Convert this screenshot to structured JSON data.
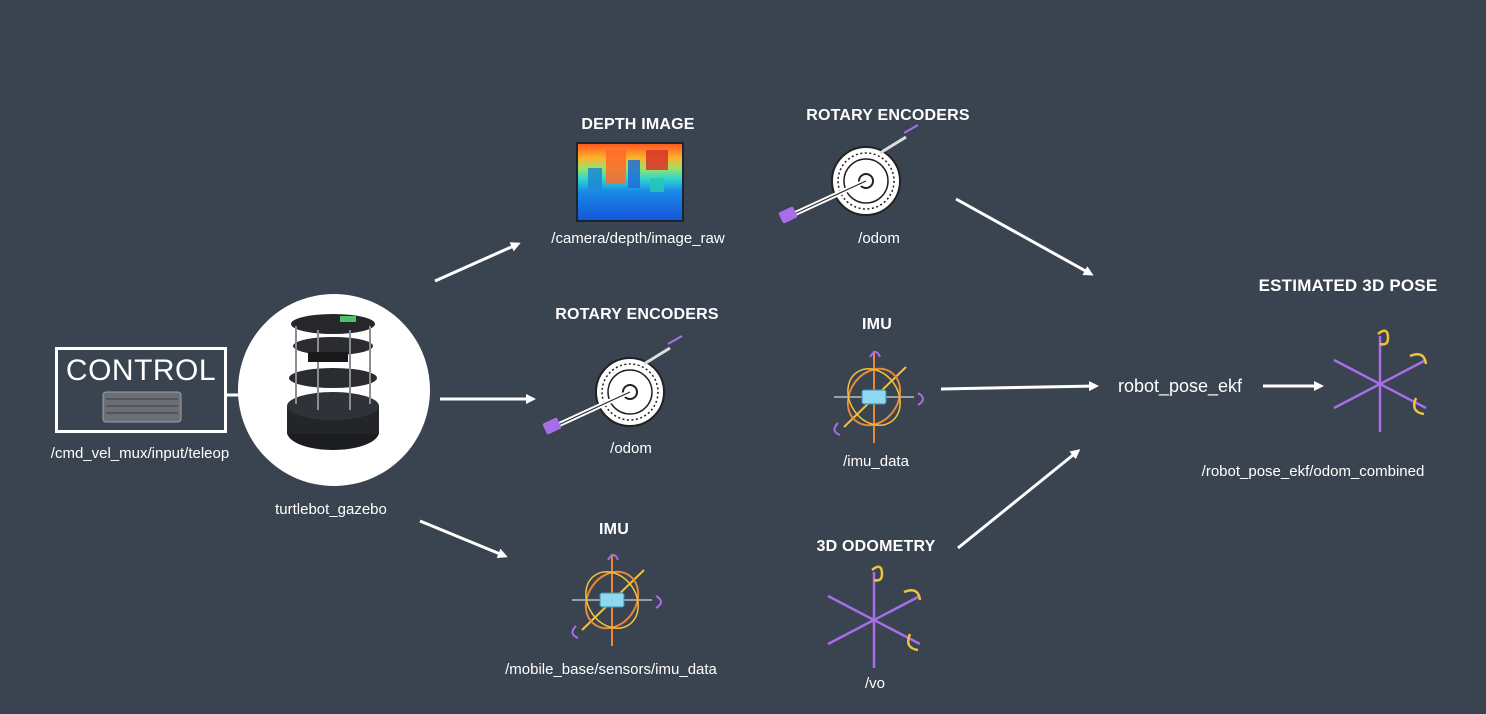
{
  "control": {
    "title": "CONTROL",
    "topic": "/cmd_vel_mux/input/teleop",
    "icon": "keyboard-icon"
  },
  "robot": {
    "label": "turtlebot_gazebo",
    "icon": "turtlebot-icon"
  },
  "sensors_left": {
    "depth": {
      "title": "DEPTH IMAGE",
      "topic": "/camera/depth/image_raw",
      "icon": "depth-image-icon"
    },
    "encoders": {
      "title": "ROTARY ENCODERS",
      "topic": "/odom",
      "icon": "rotary-encoder-icon"
    },
    "imu": {
      "title": "IMU",
      "topic": "/mobile_base/sensors/imu_data",
      "icon": "imu-icon"
    }
  },
  "sensors_right": {
    "encoders": {
      "title": "ROTARY ENCODERS",
      "topic": "/odom",
      "icon": "rotary-encoder-icon"
    },
    "imu": {
      "title": "IMU",
      "topic": "/imu_data",
      "icon": "imu-icon"
    },
    "odometry": {
      "title": "3D ODOMETRY",
      "topic": "/vo",
      "icon": "axes-icon"
    }
  },
  "ekf": {
    "label": "robot_pose_ekf"
  },
  "output": {
    "title": "ESTIMATED 3D POSE",
    "topic": "/robot_pose_ekf/odom_combined",
    "icon": "pose-axes-icon"
  },
  "colors": {
    "background": "#3a4350",
    "text": "#ffffff",
    "axis_purple": "#a86ee8",
    "rotation_yellow": "#f2c23a",
    "imu_orange": "#e8883a",
    "imu_body": "#8fd8f0"
  }
}
